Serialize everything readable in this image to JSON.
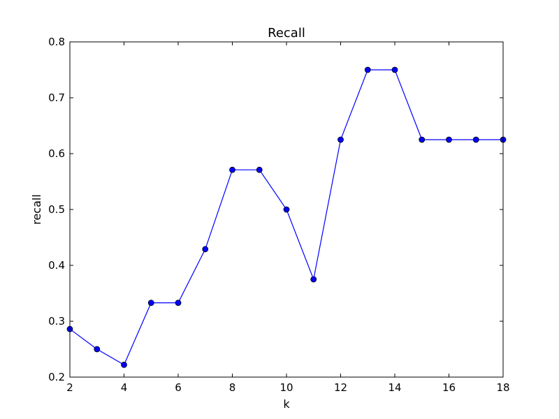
{
  "chart_data": {
    "type": "line",
    "title": "Recall",
    "xlabel": "k",
    "ylabel": "recall",
    "xlim": [
      2,
      18
    ],
    "ylim": [
      0.2,
      0.8
    ],
    "xticks": [
      "2",
      "4",
      "6",
      "8",
      "10",
      "12",
      "14",
      "16",
      "18"
    ],
    "yticks": [
      "0.2",
      "0.3",
      "0.4",
      "0.5",
      "0.6",
      "0.7",
      "0.8"
    ],
    "grid": false,
    "series": [
      {
        "color": "#0000ff",
        "marker": "circle",
        "x": [
          2,
          3,
          4,
          5,
          6,
          7,
          8,
          9,
          10,
          11,
          12,
          13,
          14,
          15,
          16,
          17,
          18
        ],
        "y": [
          0.286,
          0.25,
          0.222,
          0.333,
          0.333,
          0.429,
          0.571,
          0.571,
          0.5,
          0.375,
          0.625,
          0.75,
          0.75,
          0.625,
          0.625,
          0.625,
          0.625
        ]
      }
    ]
  }
}
